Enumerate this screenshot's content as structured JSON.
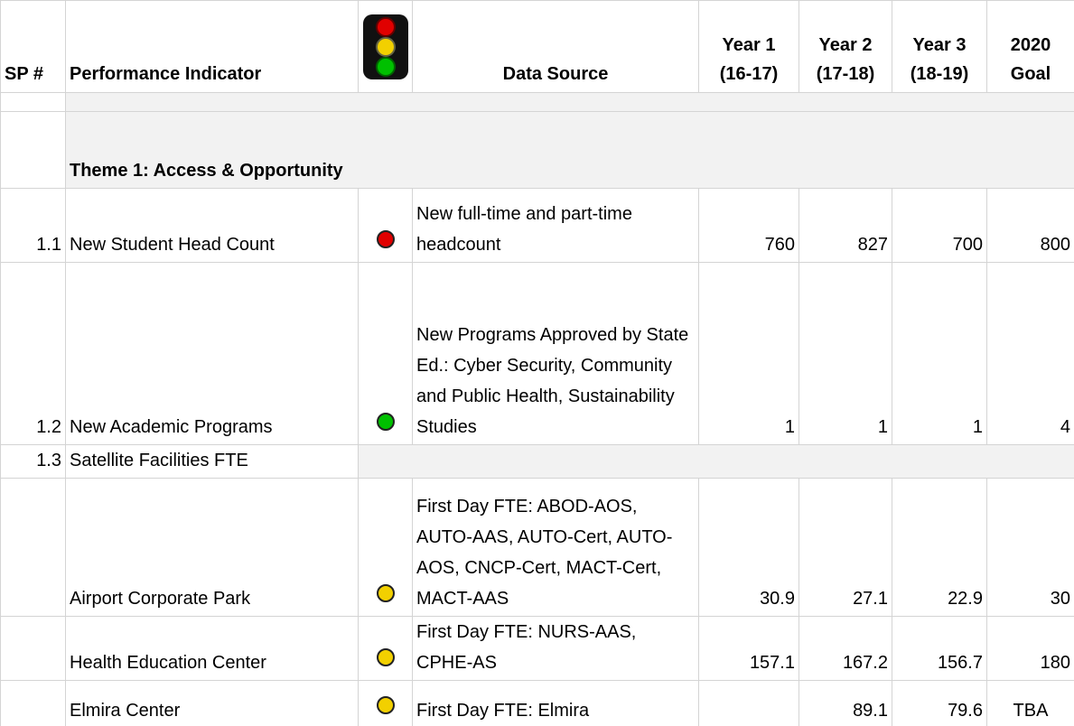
{
  "header": {
    "columns": [
      [
        "SP #"
      ],
      [
        "Performance Indicator"
      ],
      [],
      [
        "Data Source"
      ],
      [
        "Year 1",
        "(16-17)"
      ],
      [
        "Year 2",
        "(17-18)"
      ],
      [
        "Year 3",
        "(18-19)"
      ],
      [
        "2020",
        "Goal"
      ]
    ]
  },
  "theme": "Theme 1: Access & Opportunity",
  "table": {
    "rows": [
      {
        "sp": "1.1",
        "indicator": "New Student Head Count",
        "light": "#e00000",
        "source": "New full-time and part-time headcount",
        "values": [
          760,
          827,
          700,
          800
        ]
      },
      {
        "sp": "1.2",
        "indicator": "New Academic Programs",
        "light": "#00c000",
        "source": "New Programs Approved by State Ed.: Cyber Security, Community and Public Health, Sustainability Studies",
        "values": [
          1,
          1,
          1,
          4
        ]
      },
      {
        "sp": "1.3",
        "indicator": "Satellite Facilities FTE"
      },
      {
        "indicator": "Airport Corporate Park",
        "light": "#f2d000",
        "source": "First Day FTE: ABOD-AOS, AUTO-AAS, AUTO-Cert, AUTO-AOS, CNCP-Cert, MACT-Cert, MACT-AAS",
        "values": [
          30.9,
          27.1,
          22.9,
          30
        ]
      },
      {
        "indicator": "Health Education Center",
        "light": "#f2d000",
        "source": "First Day FTE: NURS-AAS, CPHE-AS",
        "values": [
          157.1,
          167.2,
          156.7,
          180
        ]
      },
      {
        "indicator": "Elmira Center",
        "light": "#f2d000",
        "source": "First Day FTE: Elmira",
        "values": [
          null,
          89.1,
          79.6,
          "TBA"
        ]
      }
    ]
  }
}
